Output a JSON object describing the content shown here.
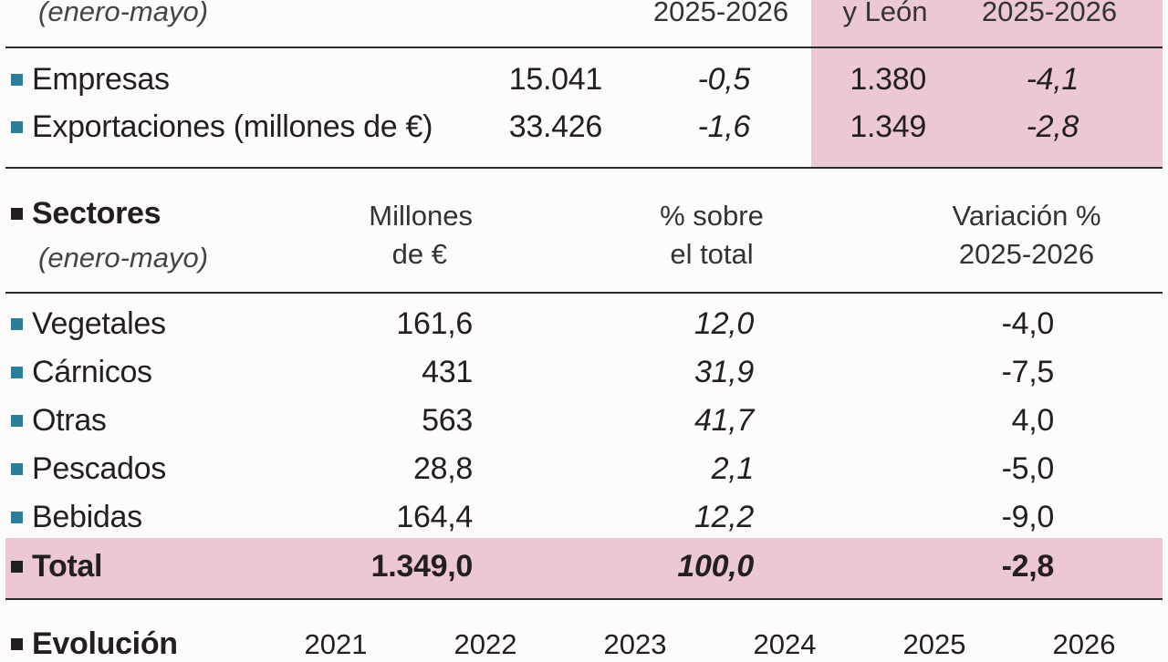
{
  "top": {
    "header_left": "(enero-mayo)",
    "header_col_var": "2025-2026",
    "header_col_cyl": "y León",
    "header_col_cylvar": "2025-2026",
    "rows": [
      {
        "label": "Empresas",
        "total": "15.041",
        "var": "-0,5",
        "cyl": "1.380",
        "cylvar": "-4,1"
      },
      {
        "label": "Exportaciones (millones de €)",
        "total": "33.426",
        "var": "-1,6",
        "cyl": "1.349",
        "cylvar": "-2,8"
      }
    ]
  },
  "sectores": {
    "title": "Sectores",
    "subtitle": "(enero-mayo)",
    "col1_line1": "Millones",
    "col1_line2": "de €",
    "col2_line1": "% sobre",
    "col2_line2": "el total",
    "col3_line1": "Variación %",
    "col3_line2": "2025-2026",
    "rows": [
      {
        "label": "Vegetales",
        "millones": "161,6",
        "pct": "12,0",
        "var": "-4,0"
      },
      {
        "label": "Cárnicos",
        "millones": "431",
        "pct": "31,9",
        "var": "-7,5"
      },
      {
        "label": "Otras",
        "millones": "563",
        "pct": "41,7",
        "var": "4,0"
      },
      {
        "label": "Pescados",
        "millones": "28,8",
        "pct": "2,1",
        "var": "-5,0"
      },
      {
        "label": "Bebidas",
        "millones": "164,4",
        "pct": "12,2",
        "var": "-9,0"
      }
    ],
    "total": {
      "label": "Total",
      "millones": "1.349,0",
      "pct": "100,0",
      "var": "-2,8"
    }
  },
  "evolucion": {
    "title": "Evolución",
    "years": [
      "2021",
      "2022",
      "2023",
      "2024",
      "2025",
      "2026"
    ]
  },
  "colors": {
    "accent_pink": "#ecc8d3",
    "bullet_teal": "#2b7d98"
  }
}
